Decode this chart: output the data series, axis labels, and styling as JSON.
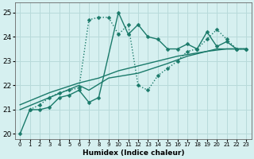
{
  "xlabel": "Humidex (Indice chaleur)",
  "bg_color": "#d6f0f0",
  "grid_color": "#b8dada",
  "line_color": "#1a7a6a",
  "xlim": [
    -0.5,
    23.5
  ],
  "ylim": [
    19.8,
    25.4
  ],
  "yticks": [
    20,
    21,
    22,
    23,
    24,
    25
  ],
  "xtick_labels": [
    "0",
    "1",
    "2",
    "3",
    "4",
    "5",
    "6",
    "7",
    "8",
    "9",
    "10",
    "11",
    "12",
    "13",
    "14",
    "15",
    "16",
    "17",
    "18",
    "19",
    "20",
    "21",
    "22",
    "23"
  ],
  "series": [
    {
      "x": [
        0,
        1,
        2,
        3,
        4,
        5,
        6,
        7,
        8,
        10,
        11,
        12,
        13,
        14,
        15,
        16,
        17,
        18,
        19,
        20,
        21,
        22,
        23
      ],
      "y": [
        20.0,
        21.0,
        21.0,
        21.1,
        21.5,
        21.6,
        21.8,
        21.3,
        21.5,
        25.0,
        24.1,
        24.5,
        24.0,
        23.9,
        23.5,
        23.5,
        23.7,
        23.5,
        24.2,
        23.6,
        23.8,
        23.5,
        23.5
      ],
      "linestyle": "solid",
      "marker": "D",
      "markersize": 2.5,
      "linewidth": 1.0
    },
    {
      "x": [
        1,
        2,
        3,
        4,
        5,
        6,
        7,
        8,
        9,
        10,
        11,
        12,
        13,
        14,
        15,
        16,
        17,
        18,
        19,
        20,
        21,
        22,
        23
      ],
      "y": [
        21.0,
        21.2,
        21.5,
        21.7,
        21.8,
        21.9,
        24.7,
        24.8,
        24.8,
        24.1,
        24.5,
        22.0,
        21.8,
        22.4,
        22.7,
        23.0,
        23.4,
        23.5,
        23.9,
        24.3,
        23.9,
        23.5,
        23.5
      ],
      "linestyle": "dotted",
      "marker": "D",
      "markersize": 2.5,
      "linewidth": 1.0
    },
    {
      "x": [
        0,
        3,
        6,
        7,
        9,
        12,
        15,
        17,
        19,
        20,
        22,
        23
      ],
      "y": [
        21.0,
        21.5,
        22.0,
        21.8,
        22.3,
        22.5,
        22.9,
        23.2,
        23.4,
        23.5,
        23.5,
        23.5
      ],
      "linestyle": "solid",
      "marker": null,
      "markersize": 0,
      "linewidth": 1.0
    },
    {
      "x": [
        0,
        3,
        6,
        8,
        10,
        13,
        16,
        19,
        21,
        23
      ],
      "y": [
        21.2,
        21.7,
        22.1,
        22.3,
        22.6,
        22.9,
        23.2,
        23.4,
        23.5,
        23.5
      ],
      "linestyle": "solid",
      "marker": null,
      "markersize": 0,
      "linewidth": 1.0
    }
  ]
}
